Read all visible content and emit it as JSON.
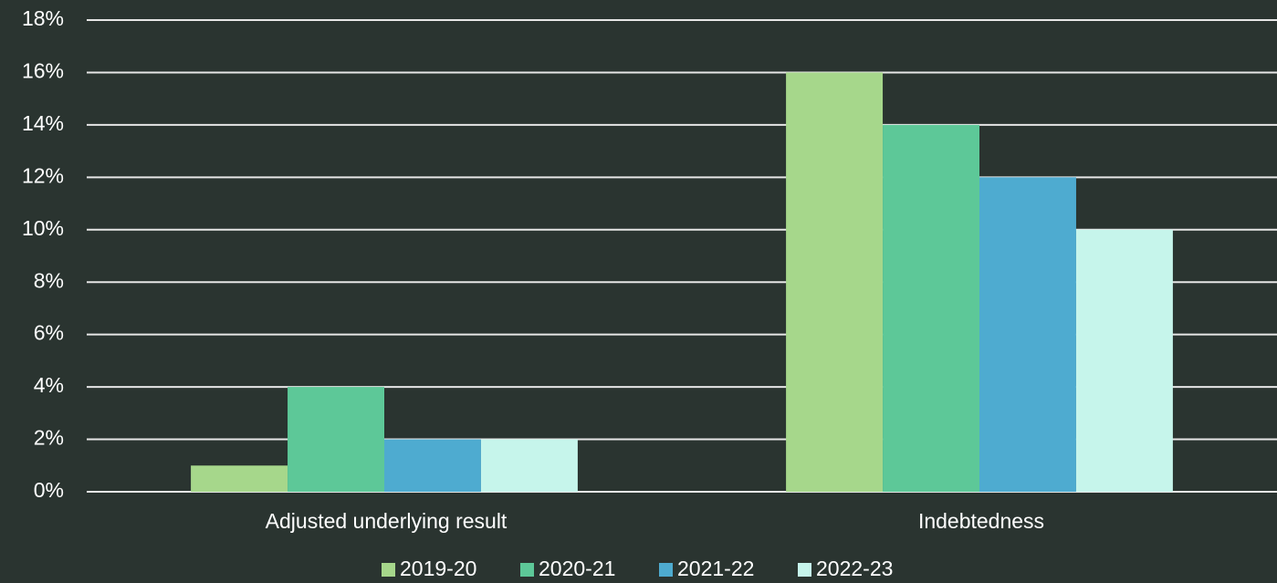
{
  "chart_data": {
    "type": "bar",
    "categories": [
      "Adjusted underlying result",
      "Indebtedness"
    ],
    "series": [
      {
        "name": "2019-20",
        "color": "#a6d78b",
        "values": [
          1,
          16
        ]
      },
      {
        "name": "2020-21",
        "color": "#5dc898",
        "values": [
          4,
          14
        ]
      },
      {
        "name": "2021-22",
        "color": "#4eabd0",
        "values": [
          2,
          12
        ]
      },
      {
        "name": "2022-23",
        "color": "#c6f5eb",
        "values": [
          2,
          10
        ]
      }
    ],
    "ylim": [
      0,
      18
    ],
    "yticks": [
      {
        "value": 0,
        "label": "0%"
      },
      {
        "value": 2,
        "label": "2%"
      },
      {
        "value": 4,
        "label": "4%"
      },
      {
        "value": 6,
        "label": "6%"
      },
      {
        "value": 8,
        "label": "8%"
      },
      {
        "value": 10,
        "label": "10%"
      },
      {
        "value": 12,
        "label": "12%"
      },
      {
        "value": 14,
        "label": "14%"
      },
      {
        "value": 16,
        "label": "16%"
      },
      {
        "value": 18,
        "label": "18%"
      }
    ],
    "grid": true,
    "legend": "bottom"
  }
}
